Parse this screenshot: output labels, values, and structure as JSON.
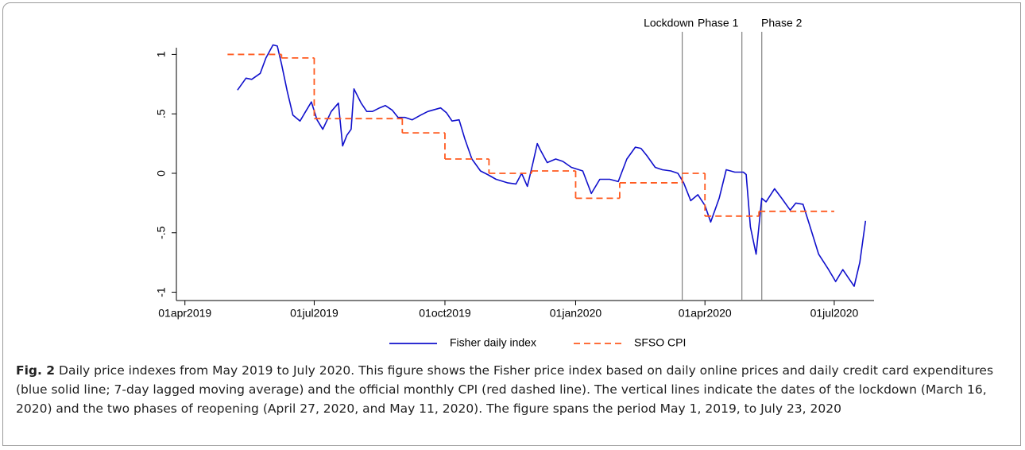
{
  "chart_data": {
    "type": "line",
    "xlim": [
      "2019-03-26",
      "2020-07-29"
    ],
    "xticks": [
      {
        "value": "2019-04-01",
        "label": "01apr2019"
      },
      {
        "value": "2019-07-01",
        "label": "01jul2019"
      },
      {
        "value": "2019-10-01",
        "label": "01oct2019"
      },
      {
        "value": "2020-01-01",
        "label": "01jan2020"
      },
      {
        "value": "2020-04-01",
        "label": "01apr2020"
      },
      {
        "value": "2020-07-01",
        "label": "01jul2020"
      }
    ],
    "ylim": [
      -1.07,
      1.19
    ],
    "yticks": [
      -1,
      {
        "value": -0.5,
        "label": "-.5"
      },
      0,
      {
        "value": 0.5,
        "label": ".5"
      },
      1
    ],
    "legend": "bottom",
    "vlines": [
      {
        "x": "2020-03-16",
        "label": "Lockdown",
        "color": "#808080"
      },
      {
        "x": "2020-04-27",
        "label": "Phase 1",
        "color": "#808080"
      },
      {
        "x": "2020-05-11",
        "label": "Phase 2",
        "color": "#808080"
      }
    ],
    "series": [
      {
        "name": "Fisher daily index",
        "color": "#1010cc",
        "x": [
          "2019-05-08",
          "2019-05-14",
          "2019-05-18",
          "2019-05-24",
          "2019-05-28",
          "2019-06-02",
          "2019-06-05",
          "2019-06-08",
          "2019-06-12",
          "2019-06-16",
          "2019-06-21",
          "2019-06-25",
          "2019-06-29",
          "2019-07-03",
          "2019-07-07",
          "2019-07-13",
          "2019-07-18",
          "2019-07-21",
          "2019-07-24",
          "2019-07-27",
          "2019-07-29",
          "2019-08-03",
          "2019-08-07",
          "2019-08-11",
          "2019-08-16",
          "2019-08-20",
          "2019-08-25",
          "2019-08-29",
          "2019-09-03",
          "2019-09-08",
          "2019-09-14",
          "2019-09-19",
          "2019-09-28",
          "2019-10-02",
          "2019-10-06",
          "2019-10-11",
          "2019-10-15",
          "2019-10-20",
          "2019-10-26",
          "2019-10-31",
          "2019-11-06",
          "2019-11-14",
          "2019-11-20",
          "2019-11-24",
          "2019-11-28",
          "2019-12-02",
          "2019-12-05",
          "2019-12-07",
          "2019-12-12",
          "2019-12-18",
          "2019-12-23",
          "2019-12-29",
          "2020-01-06",
          "2020-01-12",
          "2020-01-18",
          "2020-01-25",
          "2020-01-31",
          "2020-02-06",
          "2020-02-12",
          "2020-02-16",
          "2020-02-20",
          "2020-02-26",
          "2020-03-02",
          "2020-03-08",
          "2020-03-13",
          "2020-03-17",
          "2020-03-22",
          "2020-03-27",
          "2020-04-01",
          "2020-04-05",
          "2020-04-11",
          "2020-04-16",
          "2020-04-22",
          "2020-04-28",
          "2020-04-30",
          "2020-05-03",
          "2020-05-07",
          "2020-05-11",
          "2020-05-14",
          "2020-05-20",
          "2020-05-25",
          "2020-05-31",
          "2020-06-04",
          "2020-06-09",
          "2020-06-13",
          "2020-06-20",
          "2020-06-27",
          "2020-07-02",
          "2020-07-07",
          "2020-07-11",
          "2020-07-15",
          "2020-07-19",
          "2020-07-23"
        ],
        "values": [
          0.7,
          0.8,
          0.79,
          0.84,
          0.97,
          1.08,
          1.07,
          0.92,
          0.69,
          0.49,
          0.44,
          0.52,
          0.6,
          0.45,
          0.37,
          0.52,
          0.59,
          0.23,
          0.32,
          0.37,
          0.71,
          0.59,
          0.52,
          0.52,
          0.55,
          0.57,
          0.53,
          0.47,
          0.47,
          0.45,
          0.49,
          0.52,
          0.55,
          0.51,
          0.44,
          0.45,
          0.29,
          0.12,
          0.02,
          -0.01,
          -0.05,
          -0.08,
          -0.09,
          0.0,
          -0.11,
          0.09,
          0.25,
          0.2,
          0.09,
          0.12,
          0.1,
          0.05,
          0.02,
          -0.17,
          -0.05,
          -0.05,
          -0.07,
          0.12,
          0.22,
          0.21,
          0.15,
          0.05,
          0.03,
          0.02,
          0.0,
          -0.08,
          -0.23,
          -0.18,
          -0.27,
          -0.41,
          -0.21,
          0.03,
          0.01,
          0.01,
          -0.01,
          -0.45,
          -0.68,
          -0.21,
          -0.24,
          -0.13,
          -0.21,
          -0.31,
          -0.25,
          -0.26,
          -0.41,
          -0.68,
          -0.81,
          -0.91,
          -0.81,
          -0.88,
          -0.95,
          -0.75,
          -0.4
        ]
      },
      {
        "name": "SFSO CPI",
        "color": "#ff5a1f",
        "dash": true,
        "step": "post",
        "x": [
          "2019-05-01",
          "2019-06-08",
          "2019-07-01",
          "2019-09-01",
          "2019-10-01",
          "2019-11-01",
          "2019-12-01",
          "2020-01-01",
          "2020-02-01",
          "2020-03-16",
          "2020-04-01",
          "2020-05-09",
          "2020-07-01"
        ],
        "values": [
          1.0,
          0.97,
          0.46,
          0.34,
          0.12,
          0.0,
          0.02,
          -0.21,
          -0.08,
          0.0,
          -0.36,
          -0.32,
          -0.32
        ]
      }
    ]
  },
  "figure_caption": {
    "label": "Fig. 2",
    "text": "Daily price indexes from May 2019 to July 2020. This figure shows the Fisher price index based on daily online prices and daily credit card expenditures (blue solid line; 7-day lagged moving average) and the official monthly CPI (red dashed line). The vertical lines indicate the dates of the lockdown (March 16, 2020) and the two phases of reopening (April 27, 2020, and May 11, 2020). The figure spans the period May 1, 2019, to July 23, 2020"
  }
}
